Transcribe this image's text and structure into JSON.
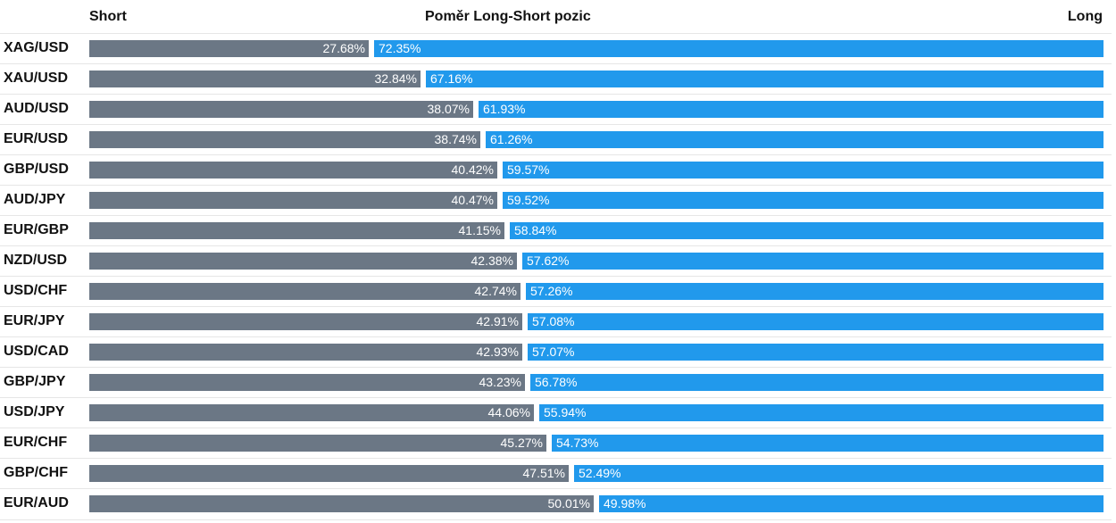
{
  "header": {
    "short_label": "Short",
    "title": "Poměr Long-Short pozic",
    "long_label": "Long"
  },
  "colors": {
    "short": "#6b7785",
    "long": "#2199ec"
  },
  "chart_data": {
    "type": "bar",
    "stacked": true,
    "orientation": "horizontal",
    "title": "Poměr Long-Short pozic",
    "categories": [
      "XAG/USD",
      "XAU/USD",
      "AUD/USD",
      "EUR/USD",
      "GBP/USD",
      "AUD/JPY",
      "EUR/GBP",
      "NZD/USD",
      "USD/CHF",
      "EUR/JPY",
      "USD/CAD",
      "GBP/JPY",
      "USD/JPY",
      "EUR/CHF",
      "GBP/CHF",
      "EUR/AUD"
    ],
    "series": [
      {
        "name": "Short",
        "values": [
          27.68,
          32.84,
          38.07,
          38.74,
          40.42,
          40.47,
          41.15,
          42.38,
          42.74,
          42.91,
          42.93,
          43.23,
          44.06,
          45.27,
          47.51,
          50.01
        ]
      },
      {
        "name": "Long",
        "values": [
          72.35,
          67.16,
          61.93,
          61.26,
          59.57,
          59.52,
          58.84,
          57.62,
          57.26,
          57.08,
          57.07,
          56.78,
          55.94,
          54.73,
          52.49,
          49.98
        ]
      }
    ],
    "value_labels": {
      "short": [
        "27.68%",
        "32.84%",
        "38.07%",
        "38.74%",
        "40.42%",
        "40.47%",
        "41.15%",
        "42.38%",
        "42.74%",
        "42.91%",
        "42.93%",
        "43.23%",
        "44.06%",
        "45.27%",
        "47.51%",
        "50.01%"
      ],
      "long": [
        "72.35%",
        "67.16%",
        "61.93%",
        "61.26%",
        "59.57%",
        "59.52%",
        "58.84%",
        "57.62%",
        "57.26%",
        "57.08%",
        "57.07%",
        "56.78%",
        "55.94%",
        "54.73%",
        "52.49%",
        "49.98%"
      ]
    },
    "xlim": [
      0,
      100
    ]
  }
}
